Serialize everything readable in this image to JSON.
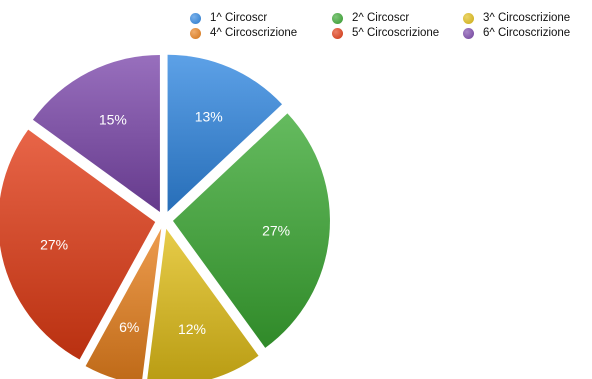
{
  "chart_data": {
    "type": "pie",
    "title": "",
    "categories": [
      "1^ Circoscr",
      "2^ Circoscr",
      "3^ Circoscrizione",
      "4^ Circoscrizione",
      "5^ Circoscrizione",
      "6^ Circoscrizione"
    ],
    "values": [
      13,
      27,
      12,
      6,
      27,
      15
    ],
    "labels": [
      "13%",
      "27%",
      "12%",
      "6%",
      "27%",
      "15%"
    ],
    "colors": [
      "#2f86e0",
      "#3aa832",
      "#e0bd16",
      "#e8801c",
      "#e23a14",
      "#7b47ab"
    ],
    "legend_position": "top-right",
    "exploded": true
  }
}
